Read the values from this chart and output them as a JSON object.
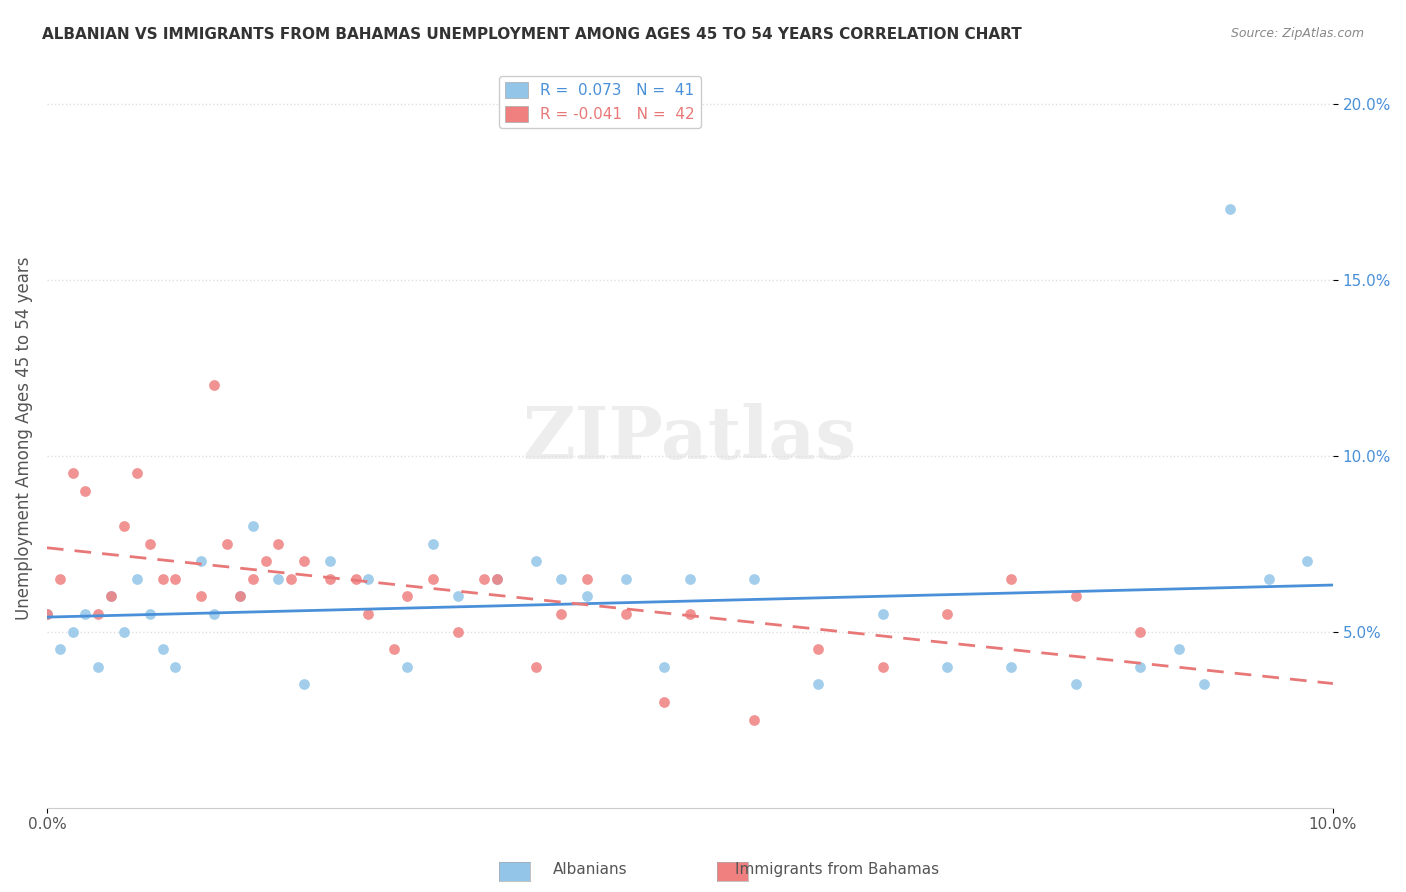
{
  "title": "ALBANIAN VS IMMIGRANTS FROM BAHAMAS UNEMPLOYMENT AMONG AGES 45 TO 54 YEARS CORRELATION CHART",
  "source": "Source: ZipAtlas.com",
  "ylabel": "Unemployment Among Ages 45 to 54 years",
  "xlim": [
    0.0,
    0.1
  ],
  "ylim": [
    0.0,
    0.21
  ],
  "ytick_vals": [
    0.05,
    0.1,
    0.15,
    0.2
  ],
  "ytick_labels": [
    "5.0%",
    "10.0%",
    "15.0%",
    "20.0%"
  ],
  "legend_r1": "R =  0.073   N =  41",
  "legend_r2": "R = -0.041   N =  42",
  "color_albanian": "#92C5E8",
  "color_bahamas": "#F08080",
  "color_line_albanian": "#4A90D9",
  "color_line_bahamas": "#E87878",
  "watermark": "ZIPatlas",
  "albanian_x": [
    0.0,
    0.001,
    0.002,
    0.003,
    0.004,
    0.005,
    0.006,
    0.007,
    0.008,
    0.009,
    0.01,
    0.012,
    0.013,
    0.015,
    0.016,
    0.018,
    0.02,
    0.022,
    0.025,
    0.028,
    0.03,
    0.032,
    0.035,
    0.038,
    0.04,
    0.042,
    0.045,
    0.048,
    0.05,
    0.055,
    0.06,
    0.065,
    0.07,
    0.075,
    0.08,
    0.085,
    0.088,
    0.09,
    0.092,
    0.095,
    0.098
  ],
  "albanian_y": [
    0.055,
    0.045,
    0.05,
    0.055,
    0.04,
    0.06,
    0.05,
    0.065,
    0.055,
    0.045,
    0.04,
    0.07,
    0.055,
    0.06,
    0.08,
    0.065,
    0.035,
    0.07,
    0.065,
    0.04,
    0.075,
    0.06,
    0.065,
    0.07,
    0.065,
    0.06,
    0.065,
    0.04,
    0.065,
    0.065,
    0.035,
    0.055,
    0.04,
    0.04,
    0.035,
    0.04,
    0.045,
    0.035,
    0.17,
    0.065,
    0.07
  ],
  "bahamas_x": [
    0.0,
    0.001,
    0.002,
    0.003,
    0.004,
    0.005,
    0.006,
    0.007,
    0.008,
    0.009,
    0.01,
    0.012,
    0.013,
    0.014,
    0.015,
    0.016,
    0.017,
    0.018,
    0.019,
    0.02,
    0.022,
    0.024,
    0.025,
    0.027,
    0.028,
    0.03,
    0.032,
    0.034,
    0.035,
    0.038,
    0.04,
    0.042,
    0.045,
    0.048,
    0.05,
    0.055,
    0.06,
    0.065,
    0.07,
    0.075,
    0.08,
    0.085
  ],
  "bahamas_y": [
    0.055,
    0.065,
    0.095,
    0.09,
    0.055,
    0.06,
    0.08,
    0.095,
    0.075,
    0.065,
    0.065,
    0.06,
    0.12,
    0.075,
    0.06,
    0.065,
    0.07,
    0.075,
    0.065,
    0.07,
    0.065,
    0.065,
    0.055,
    0.045,
    0.06,
    0.065,
    0.05,
    0.065,
    0.065,
    0.04,
    0.055,
    0.065,
    0.055,
    0.03,
    0.055,
    0.025,
    0.045,
    0.04,
    0.055,
    0.065,
    0.06,
    0.05
  ],
  "background_color": "#FFFFFF",
  "grid_color": "#E0E0E0"
}
